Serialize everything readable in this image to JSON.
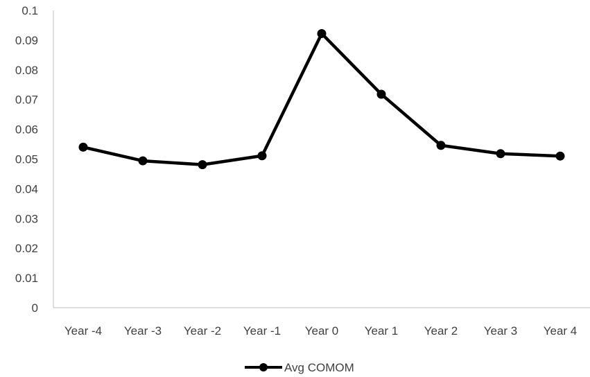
{
  "chart_data": {
    "type": "line",
    "title": "",
    "xlabel": "",
    "ylabel": "",
    "categories": [
      "Year -4",
      "Year -3",
      "Year -2",
      "Year -1",
      "Year 0",
      "Year 1",
      "Year 2",
      "Year 3",
      "Year 4"
    ],
    "series": [
      {
        "name": "Avg COMOM",
        "values": [
          0.054,
          0.0494,
          0.0481,
          0.0511,
          0.0922,
          0.0718,
          0.0546,
          0.0518,
          0.051
        ],
        "color": "#000000",
        "marker": "circle"
      }
    ],
    "ylim": [
      0,
      0.1
    ],
    "yticks": [
      "0",
      "0.01",
      "0.02",
      "0.03",
      "0.04",
      "0.05",
      "0.06",
      "0.07",
      "0.08",
      "0.09",
      "0.1"
    ],
    "grid": false,
    "legend_position": "bottom"
  }
}
